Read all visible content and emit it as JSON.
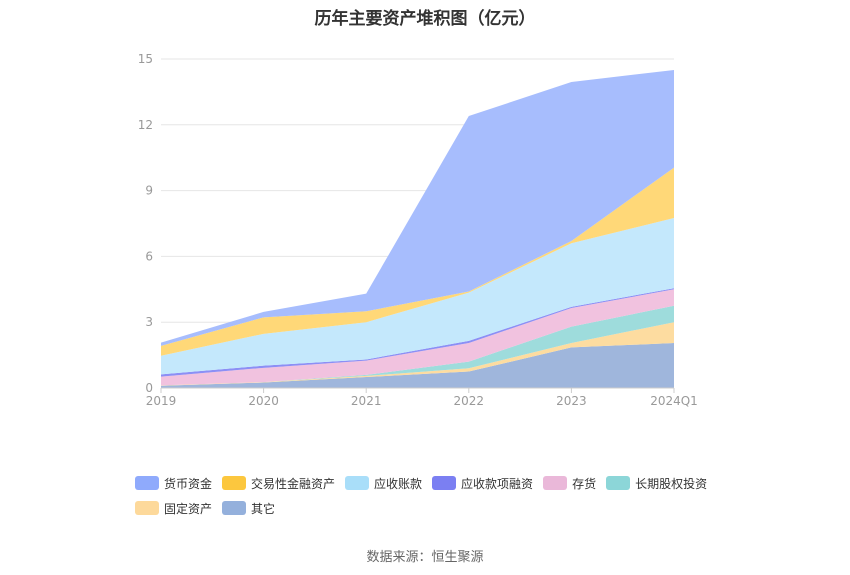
{
  "chart_data": {
    "type": "area",
    "stacked": true,
    "title": "历年主要资产堆积图（亿元）",
    "categories": [
      "2019",
      "2020",
      "2021",
      "2022",
      "2023",
      "2024Q1"
    ],
    "ylim": [
      0,
      15
    ],
    "yticks": [
      "0",
      "3",
      "6",
      "9",
      "12",
      "15"
    ],
    "grid": true,
    "series": [
      {
        "name": "其它",
        "color": "#9fb6dc",
        "values": [
          0.1,
          0.25,
          0.5,
          0.75,
          1.85,
          2.05
        ]
      },
      {
        "name": "固定资产",
        "color": "#fddca0",
        "values": [
          0.02,
          0.02,
          0.05,
          0.15,
          0.2,
          0.95
        ]
      },
      {
        "name": "长期股权投资",
        "color": "#9edcdc",
        "values": [
          0.0,
          0.0,
          0.05,
          0.3,
          0.75,
          0.75
        ]
      },
      {
        "name": "存货",
        "color": "#f1c2df",
        "values": [
          0.4,
          0.65,
          0.65,
          0.85,
          0.85,
          0.75
        ]
      },
      {
        "name": "应收款项融资",
        "color": "#8c8ff5",
        "values": [
          0.1,
          0.1,
          0.05,
          0.1,
          0.05,
          0.05
        ]
      },
      {
        "name": "应收账款",
        "color": "#c4e8fc",
        "values": [
          0.85,
          1.45,
          1.7,
          2.2,
          2.9,
          3.2
        ]
      },
      {
        "name": "交易性金融资产",
        "color": "#ffd878",
        "values": [
          0.45,
          0.75,
          0.5,
          0.05,
          0.1,
          2.3
        ]
      },
      {
        "name": "货币资金",
        "color": "#a7bdfd",
        "values": [
          0.15,
          0.25,
          0.8,
          8.0,
          7.25,
          4.45
        ]
      }
    ]
  },
  "legend": {
    "items": [
      {
        "label": "货币资金",
        "color": "#8faafc"
      },
      {
        "label": "交易性金融资产",
        "color": "#fcc73e"
      },
      {
        "label": "应收账款",
        "color": "#a9def9"
      },
      {
        "label": "应收款项融资",
        "color": "#7b7ff2"
      },
      {
        "label": "存货",
        "color": "#eab8d9"
      },
      {
        "label": "长期股权投资",
        "color": "#8cd6d8"
      },
      {
        "label": "固定资产",
        "color": "#fdd99b"
      },
      {
        "label": "其它",
        "color": "#94b0dc"
      }
    ]
  },
  "source": "数据来源：恒生聚源"
}
